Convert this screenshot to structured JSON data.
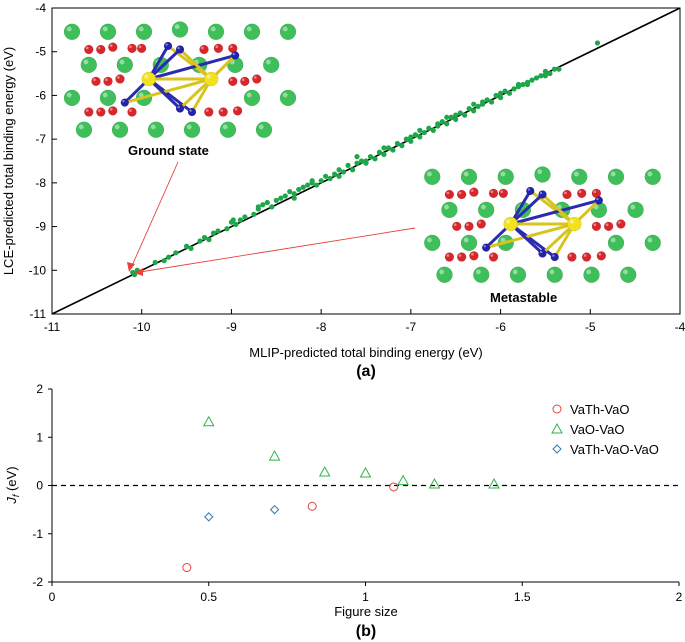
{
  "chart_data": [
    {
      "type": "scatter",
      "panel_label": "(a)",
      "xlabel": "MLIP-predicted total binding energy (eV)",
      "ylabel": "LCE-predicted total binding energy (eV)",
      "xlim": [
        -11,
        -4
      ],
      "ylim": [
        -11,
        -4
      ],
      "xticks": [
        "-11",
        "-10",
        "-9",
        "-8",
        "-7",
        "-6",
        "-5",
        "-4"
      ],
      "yticks": [
        "-11",
        "-10",
        "-9",
        "-8",
        "-7",
        "-6",
        "-5",
        "-4"
      ],
      "reference_line": [
        [
          -11,
          -11
        ],
        [
          -4,
          -4
        ]
      ],
      "points": [
        [
          -10.1,
          -10.05
        ],
        [
          -10.08,
          -10.1
        ],
        [
          -10.05,
          -10.0
        ],
        [
          -9.75,
          -9.78
        ],
        [
          -9.7,
          -9.7
        ],
        [
          -9.62,
          -9.6
        ],
        [
          -9.5,
          -9.45
        ],
        [
          -9.45,
          -9.5
        ],
        [
          -9.35,
          -9.33
        ],
        [
          -9.3,
          -9.25
        ],
        [
          -9.2,
          -9.15
        ],
        [
          -9.15,
          -9.1
        ],
        [
          -9.05,
          -9.05
        ],
        [
          -8.98,
          -8.85
        ],
        [
          -8.9,
          -8.85
        ],
        [
          -8.85,
          -8.78
        ],
        [
          -8.75,
          -8.72
        ],
        [
          -8.7,
          -8.6
        ],
        [
          -8.6,
          -8.45
        ],
        [
          -8.55,
          -8.55
        ],
        [
          -8.5,
          -8.4
        ],
        [
          -8.45,
          -8.35
        ],
        [
          -8.4,
          -8.3
        ],
        [
          -8.35,
          -8.2
        ],
        [
          -8.3,
          -8.25
        ],
        [
          -8.25,
          -8.15
        ],
        [
          -8.2,
          -8.1
        ],
        [
          -8.15,
          -8.05
        ],
        [
          -8.1,
          -8.0
        ],
        [
          -8.05,
          -8.05
        ],
        [
          -8.0,
          -7.95
        ],
        [
          -7.95,
          -7.85
        ],
        [
          -7.9,
          -7.9
        ],
        [
          -7.85,
          -7.8
        ],
        [
          -7.8,
          -7.7
        ],
        [
          -7.75,
          -7.75
        ],
        [
          -7.7,
          -7.6
        ],
        [
          -7.65,
          -7.7
        ],
        [
          -7.6,
          -7.55
        ],
        [
          -7.55,
          -7.5
        ],
        [
          -7.5,
          -7.5
        ],
        [
          -7.45,
          -7.4
        ],
        [
          -7.4,
          -7.45
        ],
        [
          -7.35,
          -7.3
        ],
        [
          -7.3,
          -7.35
        ],
        [
          -7.25,
          -7.2
        ],
        [
          -7.2,
          -7.25
        ],
        [
          -7.15,
          -7.1
        ],
        [
          -7.1,
          -7.15
        ],
        [
          -7.05,
          -7.0
        ],
        [
          -7.0,
          -7.05
        ],
        [
          -6.95,
          -6.9
        ],
        [
          -6.9,
          -6.95
        ],
        [
          -6.85,
          -6.85
        ],
        [
          -6.8,
          -6.75
        ],
        [
          -6.75,
          -6.8
        ],
        [
          -6.7,
          -6.7
        ],
        [
          -6.65,
          -6.6
        ],
        [
          -6.6,
          -6.65
        ],
        [
          -6.55,
          -6.5
        ],
        [
          -6.5,
          -6.55
        ],
        [
          -6.45,
          -6.4
        ],
        [
          -6.4,
          -6.45
        ],
        [
          -6.35,
          -6.3
        ],
        [
          -6.3,
          -6.35
        ],
        [
          -6.25,
          -6.25
        ],
        [
          -6.2,
          -6.2
        ],
        [
          -6.15,
          -6.1
        ],
        [
          -6.1,
          -6.15
        ],
        [
          -6.05,
          -6.0
        ],
        [
          -6.0,
          -6.05
        ],
        [
          -5.95,
          -5.9
        ],
        [
          -5.9,
          -5.95
        ],
        [
          -5.85,
          -5.85
        ],
        [
          -5.8,
          -5.8
        ],
        [
          -5.75,
          -5.75
        ],
        [
          -5.7,
          -5.7
        ],
        [
          -5.65,
          -5.65
        ],
        [
          -5.6,
          -5.6
        ],
        [
          -5.55,
          -5.55
        ],
        [
          -5.5,
          -5.45
        ],
        [
          -5.45,
          -5.5
        ],
        [
          -5.4,
          -5.4
        ],
        [
          -5.35,
          -5.4
        ],
        [
          -8.7,
          -8.55
        ],
        [
          -8.65,
          -8.5
        ],
        [
          -8.1,
          -7.95
        ],
        [
          -7.6,
          -7.4
        ],
        [
          -7.3,
          -7.2
        ],
        [
          -6.9,
          -6.8
        ],
        [
          -6.6,
          -6.5
        ],
        [
          -6.3,
          -6.2
        ],
        [
          -6.0,
          -5.95
        ],
        [
          -5.7,
          -5.75
        ],
        [
          -8.95,
          -8.95
        ],
        [
          -9.0,
          -8.9
        ],
        [
          -8.3,
          -8.35
        ],
        [
          -7.8,
          -7.85
        ],
        [
          -7.5,
          -7.55
        ],
        [
          -7.0,
          -6.95
        ],
        [
          -6.7,
          -6.65
        ],
        [
          -6.5,
          -6.45
        ],
        [
          -6.2,
          -6.15
        ],
        [
          -5.8,
          -5.75
        ],
        [
          -5.5,
          -5.55
        ],
        [
          -4.92,
          -4.8
        ],
        [
          -9.85,
          -9.82
        ],
        [
          -9.25,
          -9.3
        ]
      ],
      "annotations": [
        "Ground state",
        "Metastable"
      ]
    },
    {
      "type": "scatter",
      "panel_label": "(b)",
      "xlabel": "Figure size",
      "ylabel_main": "J",
      "ylabel_sub": "f",
      "ylabel_unit": " (eV)",
      "xlim": [
        0,
        2
      ],
      "ylim": [
        -2,
        2
      ],
      "xticks": [
        "0",
        "0.5",
        "1",
        "1.5",
        "2"
      ],
      "yticks": [
        "-2",
        "-1",
        "0",
        "1",
        "2"
      ],
      "zero_line": 0,
      "series": [
        {
          "name": "VaTh-VaO",
          "marker": "circle",
          "color": "#e8433a",
          "x": [
            0.43,
            0.83,
            1.09
          ],
          "y": [
            -1.7,
            -0.43,
            -0.03
          ]
        },
        {
          "name": "VaO-VaO",
          "marker": "triangle",
          "color": "#2fb34a",
          "x": [
            0.5,
            0.71,
            0.87,
            1.0,
            1.12,
            1.22,
            1.41
          ],
          "y": [
            1.32,
            0.61,
            0.28,
            0.26,
            0.1,
            0.03,
            0.03
          ]
        },
        {
          "name": "VaTh-VaO-VaO",
          "marker": "diamond",
          "color": "#2c7bb6",
          "x": [
            0.5,
            0.71
          ],
          "y": [
            -0.65,
            -0.5
          ]
        }
      ]
    }
  ]
}
